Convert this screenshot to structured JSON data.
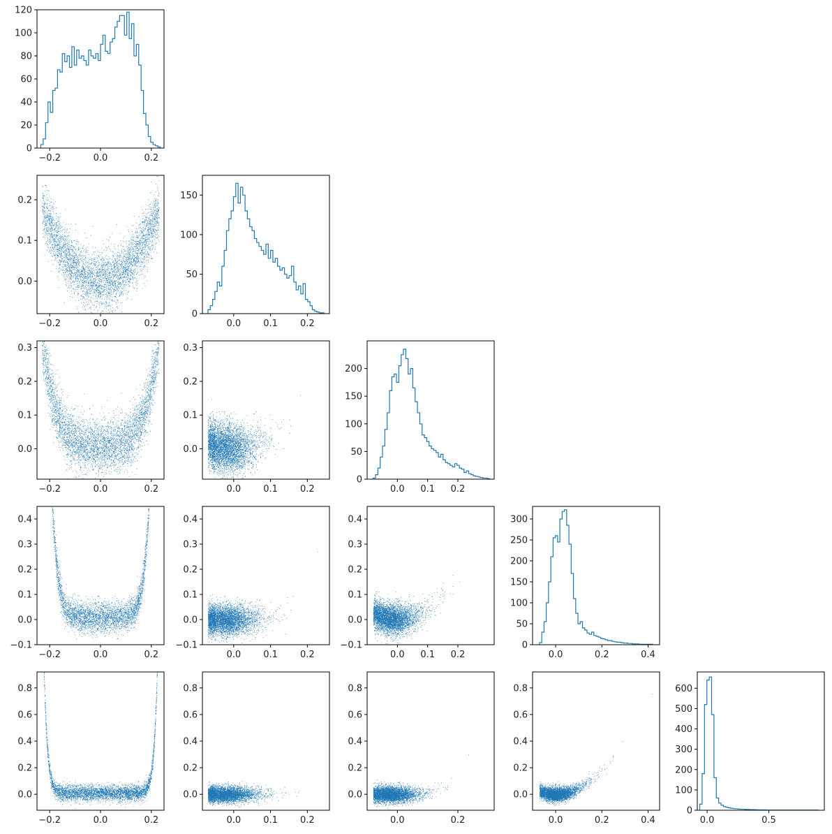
{
  "colors": {
    "series": "#1f77b4",
    "axes": "#000000"
  },
  "chart_data": [
    {
      "id": "hist-0",
      "type": "histogram",
      "row": 0,
      "col": 0,
      "bins": 50,
      "xlim": [
        -0.25,
        0.25
      ],
      "ylim": [
        0,
        120
      ],
      "xticks": [
        {
          "v": -0.2,
          "label": "−0.2"
        },
        {
          "v": 0.0,
          "label": "0.0"
        },
        {
          "v": 0.2,
          "label": "0.2"
        }
      ],
      "yticks": [
        {
          "v": 0,
          "label": "0"
        },
        {
          "v": 20,
          "label": "20"
        },
        {
          "v": 40,
          "label": "40"
        },
        {
          "v": 60,
          "label": "60"
        },
        {
          "v": 80,
          "label": "80"
        },
        {
          "v": 100,
          "label": "100"
        },
        {
          "v": 120,
          "label": "120"
        }
      ],
      "x_range": [
        -0.235,
        0.235
      ],
      "counts": [
        3,
        8,
        22,
        40,
        31,
        50,
        52,
        68,
        66,
        82,
        75,
        80,
        70,
        88,
        72,
        85,
        78,
        80,
        76,
        72,
        85,
        80,
        78,
        82,
        76,
        90,
        98,
        84,
        82,
        92,
        95,
        105,
        110,
        115,
        115,
        98,
        118,
        95,
        108,
        80,
        90,
        72,
        50,
        30,
        20,
        10,
        5,
        3,
        2,
        1
      ]
    },
    {
      "id": "scatter-1-0",
      "type": "scatter",
      "row": 1,
      "col": 0,
      "xlim": [
        -0.25,
        0.25
      ],
      "ylim": [
        -0.08,
        0.26
      ],
      "xticks": [
        {
          "v": -0.2,
          "label": "−0.2"
        },
        {
          "v": 0.0,
          "label": "0.0"
        },
        {
          "v": 0.2,
          "label": "0.2"
        }
      ],
      "yticks": [
        {
          "v": 0.0,
          "label": "0.0"
        },
        {
          "v": 0.1,
          "label": "0.1"
        },
        {
          "v": 0.2,
          "label": "0.2"
        }
      ],
      "relation": {
        "x_dist": "uniform",
        "x_range": [
          -0.23,
          0.23
        ],
        "curve": [
          0,
          0,
          3.3
        ],
        "noise": 0.035,
        "n_points": 4500
      }
    },
    {
      "id": "hist-1",
      "type": "histogram",
      "row": 1,
      "col": 1,
      "bins": 50,
      "xlim": [
        -0.085,
        0.26
      ],
      "ylim": [
        0,
        175
      ],
      "xticks": [
        {
          "v": 0.0,
          "label": "0.0"
        },
        {
          "v": 0.1,
          "label": "0.1"
        },
        {
          "v": 0.2,
          "label": "0.2"
        }
      ],
      "yticks": [
        {
          "v": 0,
          "label": "0"
        },
        {
          "v": 50,
          "label": "50"
        },
        {
          "v": 100,
          "label": "100"
        },
        {
          "v": 150,
          "label": "150"
        }
      ],
      "x_range": [
        -0.07,
        0.245
      ],
      "counts": [
        5,
        10,
        18,
        28,
        40,
        35,
        60,
        80,
        105,
        120,
        130,
        148,
        165,
        140,
        160,
        150,
        130,
        120,
        110,
        105,
        95,
        90,
        85,
        80,
        75,
        88,
        70,
        80,
        65,
        70,
        60,
        55,
        58,
        50,
        45,
        48,
        60,
        40,
        30,
        35,
        25,
        38,
        18,
        15,
        10,
        5,
        3,
        2,
        1,
        1
      ]
    },
    {
      "id": "scatter-2-0",
      "type": "scatter",
      "row": 2,
      "col": 0,
      "xlim": [
        -0.25,
        0.25
      ],
      "ylim": [
        -0.09,
        0.32
      ],
      "xticks": [
        {
          "v": -0.2,
          "label": "−0.2"
        },
        {
          "v": 0.0,
          "label": "0.0"
        },
        {
          "v": 0.2,
          "label": "0.2"
        }
      ],
      "yticks": [
        {
          "v": 0.0,
          "label": "0.0"
        },
        {
          "v": 0.1,
          "label": "0.1"
        },
        {
          "v": 0.2,
          "label": "0.2"
        },
        {
          "v": 0.3,
          "label": "0.3"
        }
      ],
      "relation": {
        "x_dist": "uniform",
        "x_range": [
          -0.23,
          0.23
        ],
        "curve": [
          0.01,
          0,
          0.0
        ],
        "quartic": 110,
        "noise": 0.04,
        "n_points": 4500
      }
    },
    {
      "id": "scatter-2-1",
      "type": "scatter",
      "row": 2,
      "col": 1,
      "xlim": [
        -0.085,
        0.26
      ],
      "ylim": [
        -0.09,
        0.32
      ],
      "xticks": [
        {
          "v": 0.0,
          "label": "0.0"
        },
        {
          "v": 0.1,
          "label": "0.1"
        },
        {
          "v": 0.2,
          "label": "0.2"
        }
      ],
      "yticks": [
        {
          "v": 0.0,
          "label": "0.0"
        },
        {
          "v": 0.1,
          "label": "0.1"
        },
        {
          "v": 0.2,
          "label": "0.2"
        },
        {
          "v": 0.3,
          "label": "0.3"
        }
      ],
      "relation": {
        "x_dist": "skew",
        "x_range": [
          -0.07,
          0.245
        ],
        "curve": [
          0.0,
          0.0,
          3.6
        ],
        "noise": 0.035,
        "n_points": 4500
      }
    },
    {
      "id": "hist-2",
      "type": "histogram",
      "row": 2,
      "col": 2,
      "bins": 50,
      "xlim": [
        -0.1,
        0.32
      ],
      "ylim": [
        0,
        250
      ],
      "xticks": [
        {
          "v": 0.0,
          "label": "0.0"
        },
        {
          "v": 0.1,
          "label": "0.1"
        },
        {
          "v": 0.2,
          "label": "0.2"
        }
      ],
      "yticks": [
        {
          "v": 0,
          "label": "0"
        },
        {
          "v": 50,
          "label": "50"
        },
        {
          "v": 100,
          "label": "100"
        },
        {
          "v": 150,
          "label": "150"
        },
        {
          "v": 200,
          "label": "200"
        }
      ],
      "x_range": [
        -0.08,
        0.305
      ],
      "counts": [
        2,
        8,
        20,
        40,
        60,
        90,
        120,
        160,
        185,
        190,
        175,
        205,
        225,
        235,
        218,
        190,
        200,
        165,
        140,
        120,
        100,
        80,
        75,
        68,
        60,
        55,
        52,
        48,
        40,
        45,
        35,
        30,
        28,
        25,
        22,
        28,
        25,
        20,
        18,
        12,
        15,
        10,
        8,
        6,
        5,
        4,
        3,
        2,
        2,
        1
      ]
    },
    {
      "id": "scatter-3-0",
      "type": "scatter",
      "row": 3,
      "col": 0,
      "xlim": [
        -0.25,
        0.25
      ],
      "ylim": [
        -0.1,
        0.45
      ],
      "xticks": [
        {
          "v": -0.2,
          "label": "−0.2"
        },
        {
          "v": 0.0,
          "label": "0.0"
        },
        {
          "v": 0.2,
          "label": "0.2"
        }
      ],
      "yticks": [
        {
          "v": -0.1,
          "label": "−0.1"
        },
        {
          "v": 0.0,
          "label": "0.0"
        },
        {
          "v": 0.1,
          "label": "0.1"
        },
        {
          "v": 0.2,
          "label": "0.2"
        },
        {
          "v": 0.3,
          "label": "0.3"
        },
        {
          "v": 0.4,
          "label": "0.4"
        }
      ],
      "relation": {
        "x_dist": "uniform",
        "x_range": [
          -0.23,
          0.23
        ],
        "curve": [
          0.01,
          0,
          0.0
        ],
        "power": [
          8,
          260000.0
        ],
        "noise": 0.03,
        "n_points": 4500
      }
    },
    {
      "id": "scatter-3-1",
      "type": "scatter",
      "row": 3,
      "col": 1,
      "xlim": [
        -0.085,
        0.26
      ],
      "ylim": [
        -0.1,
        0.45
      ],
      "xticks": [
        {
          "v": 0.0,
          "label": "0.0"
        },
        {
          "v": 0.1,
          "label": "0.1"
        },
        {
          "v": 0.2,
          "label": "0.2"
        }
      ],
      "yticks": [
        {
          "v": -0.1,
          "label": "−0.1"
        },
        {
          "v": 0.0,
          "label": "0.0"
        },
        {
          "v": 0.1,
          "label": "0.1"
        },
        {
          "v": 0.2,
          "label": "0.2"
        },
        {
          "v": 0.3,
          "label": "0.3"
        },
        {
          "v": 0.4,
          "label": "0.4"
        }
      ],
      "relation": {
        "x_dist": "skew",
        "x_range": [
          -0.07,
          0.245
        ],
        "curve": [
          0.0,
          0.0,
          0.0
        ],
        "power": [
          4,
          90
        ],
        "noise": 0.03,
        "n_points": 4500
      }
    },
    {
      "id": "scatter-3-2",
      "type": "scatter",
      "row": 3,
      "col": 2,
      "xlim": [
        -0.1,
        0.32
      ],
      "ylim": [
        -0.1,
        0.45
      ],
      "xticks": [
        {
          "v": 0.0,
          "label": "0.0"
        },
        {
          "v": 0.1,
          "label": "0.1"
        },
        {
          "v": 0.2,
          "label": "0.2"
        }
      ],
      "yticks": [
        {
          "v": -0.1,
          "label": "−0.1"
        },
        {
          "v": 0.0,
          "label": "0.0"
        },
        {
          "v": 0.1,
          "label": "0.1"
        },
        {
          "v": 0.2,
          "label": "0.2"
        },
        {
          "v": 0.3,
          "label": "0.3"
        },
        {
          "v": 0.4,
          "label": "0.4"
        }
      ],
      "relation": {
        "x_dist": "skew",
        "x_range": [
          -0.08,
          0.305
        ],
        "curve": [
          0.0,
          0.0,
          4.0
        ],
        "noise": 0.03,
        "n_points": 4500
      }
    },
    {
      "id": "hist-3",
      "type": "histogram",
      "row": 3,
      "col": 3,
      "bins": 50,
      "xlim": [
        -0.1,
        0.45
      ],
      "ylim": [
        0,
        330
      ],
      "xticks": [
        {
          "v": 0.0,
          "label": "0.0"
        },
        {
          "v": 0.2,
          "label": "0.2"
        },
        {
          "v": 0.4,
          "label": "0.4"
        }
      ],
      "yticks": [
        {
          "v": 0,
          "label": "0"
        },
        {
          "v": 50,
          "label": "50"
        },
        {
          "v": 100,
          "label": "100"
        },
        {
          "v": 150,
          "label": "150"
        },
        {
          "v": 200,
          "label": "200"
        },
        {
          "v": 250,
          "label": "250"
        },
        {
          "v": 300,
          "label": "300"
        }
      ],
      "x_range": [
        -0.07,
        0.42
      ],
      "counts": [
        5,
        30,
        55,
        100,
        150,
        210,
        255,
        260,
        245,
        300,
        318,
        322,
        285,
        240,
        170,
        110,
        75,
        50,
        55,
        40,
        35,
        28,
        25,
        30,
        22,
        20,
        18,
        15,
        14,
        12,
        10,
        10,
        8,
        7,
        6,
        6,
        5,
        4,
        4,
        3,
        3,
        2,
        2,
        2,
        1,
        1,
        1,
        1,
        1,
        1
      ]
    },
    {
      "id": "scatter-4-0",
      "type": "scatter",
      "row": 4,
      "col": 0,
      "xlim": [
        -0.25,
        0.25
      ],
      "ylim": [
        -0.12,
        0.92
      ],
      "xticks": [
        {
          "v": -0.2,
          "label": "−0.2"
        },
        {
          "v": 0.0,
          "label": "0.0"
        },
        {
          "v": 0.2,
          "label": "0.2"
        }
      ],
      "yticks": [
        {
          "v": 0.0,
          "label": "0.0"
        },
        {
          "v": 0.2,
          "label": "0.2"
        },
        {
          "v": 0.4,
          "label": "0.4"
        },
        {
          "v": 0.6,
          "label": "0.6"
        },
        {
          "v": 0.8,
          "label": "0.8"
        }
      ],
      "relation": {
        "x_dist": "uniform",
        "x_range": [
          -0.23,
          0.23
        ],
        "curve": [
          0.01,
          0,
          0.0
        ],
        "power": [
          16,
          25000000000.0
        ],
        "noise": 0.03,
        "n_points": 4500
      }
    },
    {
      "id": "scatter-4-1",
      "type": "scatter",
      "row": 4,
      "col": 1,
      "xlim": [
        -0.085,
        0.26
      ],
      "ylim": [
        -0.12,
        0.92
      ],
      "xticks": [
        {
          "v": 0.0,
          "label": "0.0"
        },
        {
          "v": 0.1,
          "label": "0.1"
        },
        {
          "v": 0.2,
          "label": "0.2"
        }
      ],
      "yticks": [
        {
          "v": 0.0,
          "label": "0.0"
        },
        {
          "v": 0.2,
          "label": "0.2"
        },
        {
          "v": 0.4,
          "label": "0.4"
        },
        {
          "v": 0.6,
          "label": "0.6"
        },
        {
          "v": 0.8,
          "label": "0.8"
        }
      ],
      "relation": {
        "x_dist": "skew",
        "x_range": [
          -0.07,
          0.245
        ],
        "curve": [
          0.0,
          0.0,
          0.0
        ],
        "power": [
          8,
          9000
        ],
        "noise": 0.03,
        "n_points": 4500
      }
    },
    {
      "id": "scatter-4-2",
      "type": "scatter",
      "row": 4,
      "col": 2,
      "xlim": [
        -0.1,
        0.32
      ],
      "ylim": [
        -0.12,
        0.92
      ],
      "xticks": [
        {
          "v": 0.0,
          "label": "0.0"
        },
        {
          "v": 0.2,
          "label": "0.2"
        }
      ],
      "yticks": [
        {
          "v": 0.0,
          "label": "0.0"
        },
        {
          "v": 0.2,
          "label": "0.2"
        },
        {
          "v": 0.4,
          "label": "0.4"
        },
        {
          "v": 0.6,
          "label": "0.6"
        },
        {
          "v": 0.8,
          "label": "0.8"
        }
      ],
      "relation": {
        "x_dist": "skew",
        "x_range": [
          -0.08,
          0.305
        ],
        "curve": [
          0.0,
          0.0,
          0.0
        ],
        "power": [
          4,
          100
        ],
        "noise": 0.03,
        "n_points": 4500
      }
    },
    {
      "id": "scatter-4-3",
      "type": "scatter",
      "row": 4,
      "col": 3,
      "xlim": [
        -0.1,
        0.45
      ],
      "ylim": [
        -0.12,
        0.92
      ],
      "xticks": [
        {
          "v": 0.0,
          "label": "0.0"
        },
        {
          "v": 0.2,
          "label": "0.2"
        },
        {
          "v": 0.4,
          "label": "0.4"
        }
      ],
      "yticks": [
        {
          "v": 0.0,
          "label": "0.0"
        },
        {
          "v": 0.2,
          "label": "0.2"
        },
        {
          "v": 0.4,
          "label": "0.4"
        },
        {
          "v": 0.6,
          "label": "0.6"
        },
        {
          "v": 0.8,
          "label": "0.8"
        }
      ],
      "relation": {
        "x_dist": "skew",
        "x_range": [
          -0.07,
          0.42
        ],
        "curve": [
          0.0,
          0.0,
          4.6
        ],
        "noise": 0.025,
        "n_points": 4500
      }
    },
    {
      "id": "hist-4",
      "type": "histogram",
      "row": 4,
      "col": 4,
      "bins": 50,
      "xlim": [
        -0.08,
        0.95
      ],
      "ylim": [
        0,
        680
      ],
      "xticks": [
        {
          "v": 0.0,
          "label": "0.0"
        },
        {
          "v": 0.5,
          "label": "0.5"
        }
      ],
      "yticks": [
        {
          "v": 0,
          "label": "0"
        },
        {
          "v": 100,
          "label": "100"
        },
        {
          "v": 200,
          "label": "200"
        },
        {
          "v": 300,
          "label": "300"
        },
        {
          "v": 400,
          "label": "400"
        },
        {
          "v": 500,
          "label": "500"
        },
        {
          "v": 600,
          "label": "600"
        }
      ],
      "x_range": [
        -0.06,
        0.9
      ],
      "counts": [
        30,
        180,
        520,
        640,
        655,
        470,
        160,
        60,
        35,
        25,
        18,
        15,
        12,
        10,
        8,
        7,
        6,
        5,
        5,
        4,
        4,
        3,
        3,
        3,
        2,
        2,
        2,
        2,
        1,
        1,
        1,
        1,
        1,
        1,
        1,
        1,
        1,
        1,
        1,
        1,
        1,
        1,
        1,
        1,
        1,
        1,
        1,
        1,
        1,
        1
      ]
    }
  ]
}
